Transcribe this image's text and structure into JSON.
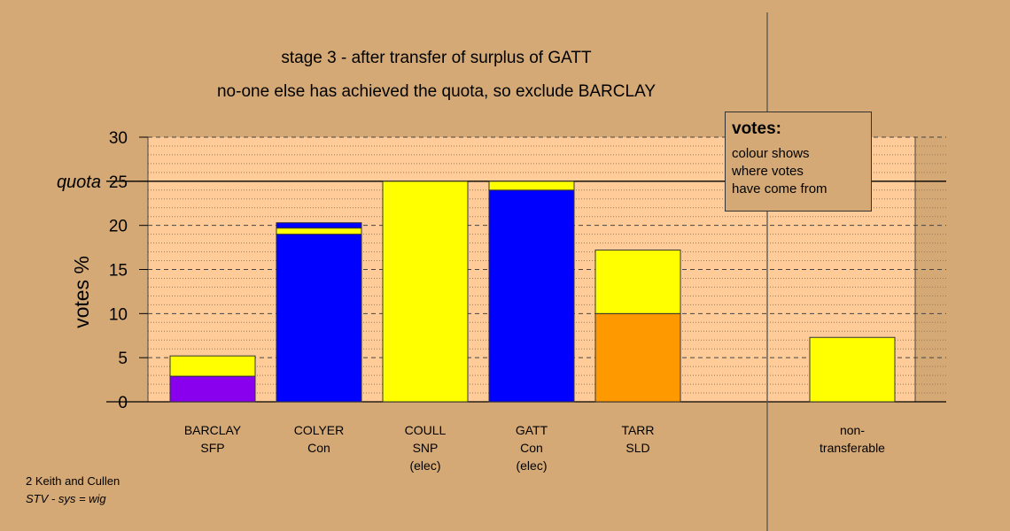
{
  "titles": {
    "line1": "stage 3 - after transfer of surplus of GATT",
    "line2": "no-one else has achieved the quota, so exclude BARCLAY"
  },
  "legend": {
    "heading": "votes:",
    "lines": [
      "colour shows",
      "where votes",
      "have come from"
    ]
  },
  "credits": {
    "line1": "2 Keith and Cullen",
    "line2": "STV - sys = wig"
  },
  "chart_data": {
    "type": "bar",
    "stacked": true,
    "ylabel": "votes %",
    "ylim": [
      0,
      30
    ],
    "yticks": [
      0,
      5,
      10,
      15,
      20,
      25,
      30
    ],
    "quota": {
      "value": 25,
      "label": "quota"
    },
    "grid": true,
    "legend_position": "top-right",
    "colors": {
      "background": "#d4a976",
      "plot": "#ffcc99"
    },
    "categories": [
      {
        "lines": [
          "BARCLAY",
          "SFP"
        ],
        "segments": [
          {
            "value": 2.9,
            "color": "#8800ee"
          },
          {
            "value": 2.3,
            "color": "#ffff00"
          }
        ]
      },
      {
        "lines": [
          "COLYER",
          "Con"
        ],
        "segments": [
          {
            "value": 19.0,
            "color": "#0000ff"
          },
          {
            "value": 0.7,
            "color": "#ffff00"
          },
          {
            "value": 0.6,
            "color": "#0000ff"
          }
        ]
      },
      {
        "lines": [
          "COULL",
          "SNP",
          "(elec)"
        ],
        "segments": [
          {
            "value": 25.0,
            "color": "#ffff00"
          }
        ]
      },
      {
        "lines": [
          "GATT",
          "Con",
          "(elec)"
        ],
        "segments": [
          {
            "value": 24.0,
            "color": "#0000ff"
          },
          {
            "value": 1.0,
            "color": "#ffff00"
          }
        ]
      },
      {
        "lines": [
          "TARR",
          "SLD"
        ],
        "segments": [
          {
            "value": 10.0,
            "color": "#ff9900"
          },
          {
            "value": 7.2,
            "color": "#ffff00"
          }
        ]
      },
      {
        "lines": [
          "non-",
          "transferable"
        ],
        "segments": [
          {
            "value": 7.3,
            "color": "#ffff00"
          }
        ]
      }
    ]
  }
}
